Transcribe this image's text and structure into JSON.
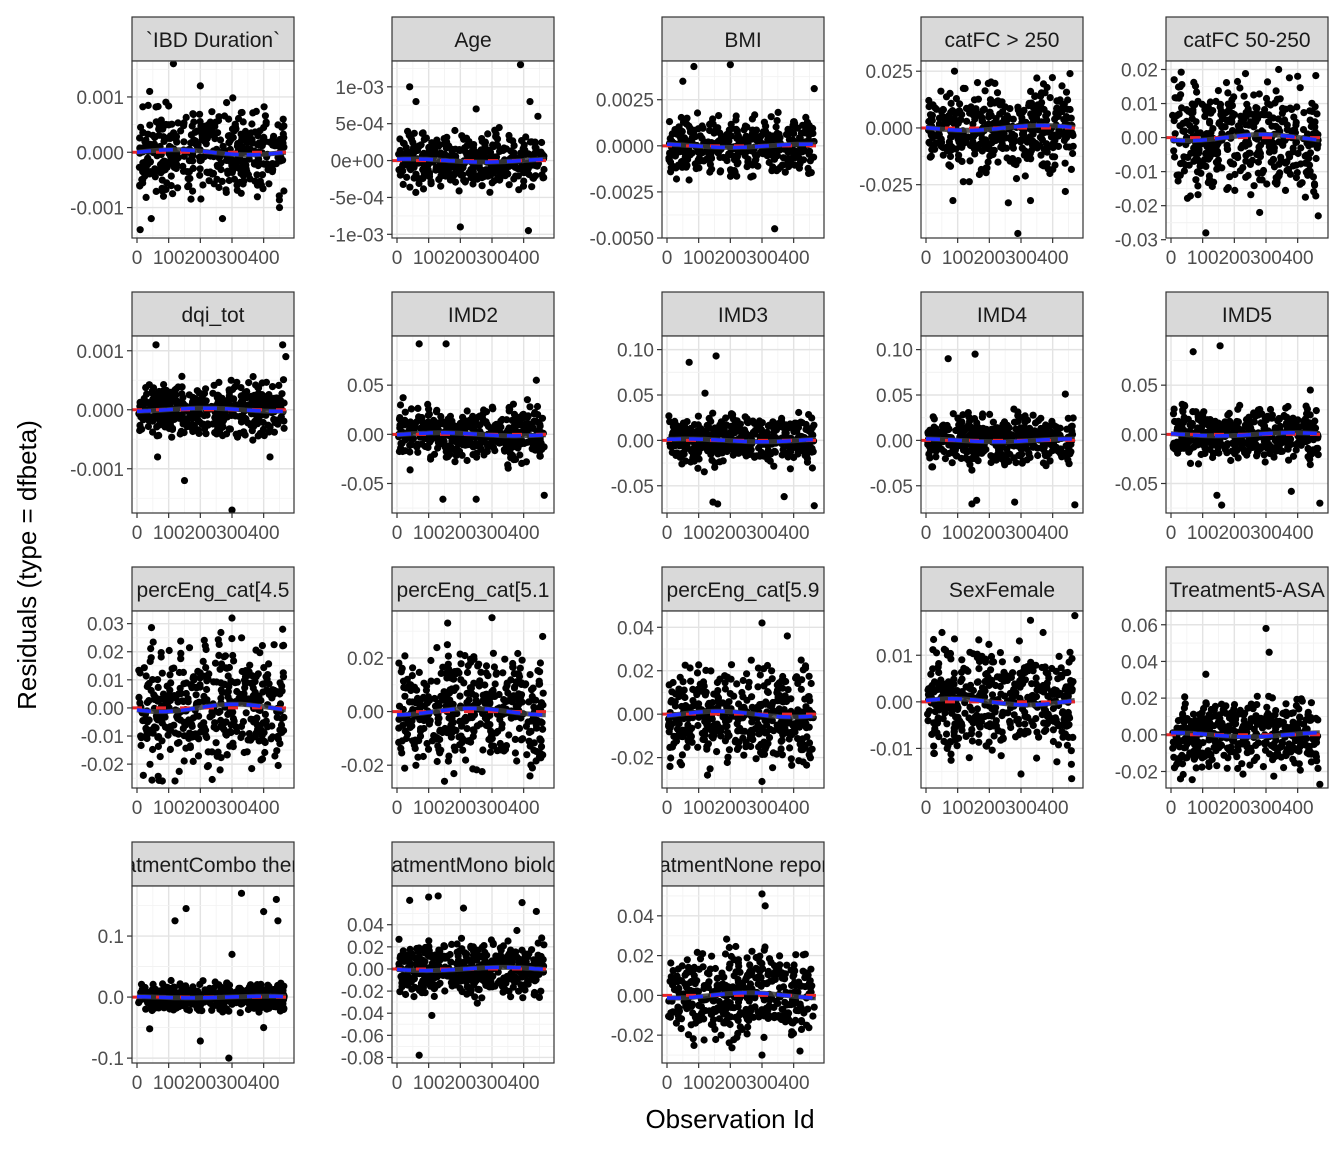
{
  "figure": {
    "xlabel": "Observation Id",
    "ylabel": "Residuals (type = dfbeta)",
    "colors": {
      "points": "#000000",
      "loess_line": "#3a3a3a",
      "zero_line": "#e8262a",
      "dashed_fit": "#1f2bff",
      "strip_fill": "#d9d9d9",
      "grid_major": "#e3e3e3",
      "grid_minor": "#f2f2f2"
    }
  },
  "chart_data": [
    {
      "type": "scatter",
      "title": "`IBD Duration`",
      "xlim": [
        0,
        480
      ],
      "xticks": [
        0,
        100,
        200,
        300,
        400
      ],
      "xtick_labels": [
        "0",
        "100",
        "200",
        "300",
        "400"
      ],
      "ylim": [
        -0.00155,
        0.00165
      ],
      "yticks": [
        -0.001,
        0,
        0.001
      ],
      "ytick_labels": [
        "-0.001",
        "0.000",
        "0.001"
      ],
      "spread": 0.00038,
      "outliers": [
        [
          115,
          0.0016
        ],
        [
          40,
          0.0011
        ],
        [
          10,
          -0.0014
        ],
        [
          45,
          -0.0012
        ],
        [
          270,
          -0.0012
        ],
        [
          450,
          -0.001
        ],
        [
          200,
          0.0012
        ]
      ],
      "grid": true
    },
    {
      "type": "scatter",
      "title": "Age",
      "xlim": [
        0,
        480
      ],
      "xticks": [
        0,
        100,
        200,
        300,
        400
      ],
      "xtick_labels": [
        "0",
        "100",
        "200",
        "300",
        "400"
      ],
      "ylim": [
        -0.00105,
        0.00135
      ],
      "yticks": [
        -0.001,
        -0.0005,
        0,
        0.0005,
        0.001
      ],
      "ytick_labels": [
        "-1e-03",
        "-5e-04",
        "0e+00",
        "5e-04",
        "1e-03"
      ],
      "spread": 0.00018,
      "outliers": [
        [
          390,
          0.0013
        ],
        [
          40,
          0.001
        ],
        [
          60,
          0.0008
        ],
        [
          250,
          0.0007
        ],
        [
          420,
          0.0008
        ],
        [
          445,
          0.0006
        ],
        [
          200,
          -0.0009
        ],
        [
          415,
          -0.00095
        ]
      ],
      "grid": true
    },
    {
      "type": "scatter",
      "title": "BMI",
      "xlim": [
        0,
        480
      ],
      "xticks": [
        0,
        100,
        200,
        300,
        400
      ],
      "xtick_labels": [
        "0",
        "100",
        "200",
        "300",
        "400"
      ],
      "ylim": [
        -0.005,
        0.0046
      ],
      "yticks": [
        -0.005,
        -0.0025,
        0,
        0.0025
      ],
      "ytick_labels": [
        "-0.0050",
        "-0.0025",
        "0.0000",
        "0.0025"
      ],
      "spread": 0.00075,
      "outliers": [
        [
          85,
          0.0043
        ],
        [
          200,
          0.0044
        ],
        [
          465,
          0.0031
        ],
        [
          340,
          -0.0045
        ],
        [
          50,
          0.0035
        ]
      ],
      "grid": true
    },
    {
      "type": "scatter",
      "title": "catFC > 250",
      "xlim": [
        0,
        480
      ],
      "xticks": [
        0,
        100,
        200,
        300,
        400
      ],
      "xtick_labels": [
        "0",
        "100",
        "200",
        "300",
        "400"
      ],
      "ylim": [
        -0.0485,
        0.0295
      ],
      "yticks": [
        -0.025,
        0,
        0.025
      ],
      "ytick_labels": [
        "-0.025",
        "0.000",
        "0.025"
      ],
      "spread": 0.009,
      "outliers": [
        [
          290,
          -0.0465
        ],
        [
          85,
          -0.032
        ],
        [
          260,
          -0.033
        ],
        [
          330,
          -0.032
        ],
        [
          440,
          -0.028
        ],
        [
          350,
          0.022
        ],
        [
          90,
          0.025
        ]
      ],
      "grid": true
    },
    {
      "type": "scatter",
      "title": "catFC 50-250",
      "xlim": [
        0,
        480
      ],
      "xticks": [
        0,
        100,
        200,
        300,
        400
      ],
      "xtick_labels": [
        "0",
        "100",
        "200",
        "300",
        "400"
      ],
      "ylim": [
        -0.0295,
        0.0225
      ],
      "yticks": [
        -0.03,
        -0.02,
        -0.01,
        0,
        0.01,
        0.02
      ],
      "ytick_labels": [
        "-0.03",
        "-0.02",
        "-0.01",
        "0.00",
        "0.01",
        "0.02"
      ],
      "spread": 0.0075,
      "outliers": [
        [
          110,
          -0.028
        ],
        [
          280,
          -0.022
        ],
        [
          465,
          -0.023
        ],
        [
          340,
          0.02
        ],
        [
          10,
          0.017
        ],
        [
          400,
          0.018
        ]
      ],
      "grid": true
    },
    {
      "type": "scatter",
      "title": "dqi_tot",
      "xlim": [
        0,
        480
      ],
      "xticks": [
        0,
        100,
        200,
        300,
        400
      ],
      "xtick_labels": [
        "0",
        "100",
        "200",
        "300",
        "400"
      ],
      "ylim": [
        -0.00175,
        0.00125
      ],
      "yticks": [
        -0.001,
        0,
        0.001
      ],
      "ytick_labels": [
        "-0.001",
        "0.000",
        "0.001"
      ],
      "spread": 0.00022,
      "outliers": [
        [
          300,
          -0.0017
        ],
        [
          150,
          -0.0012
        ],
        [
          60,
          0.0011
        ],
        [
          460,
          0.0011
        ],
        [
          65,
          -0.0008
        ],
        [
          420,
          -0.0008
        ],
        [
          470,
          0.0009
        ]
      ],
      "grid": true
    },
    {
      "type": "scatter",
      "title": "IMD2",
      "xlim": [
        0,
        480
      ],
      "xticks": [
        0,
        100,
        200,
        300,
        400
      ],
      "xtick_labels": [
        "0",
        "100",
        "200",
        "300",
        "400"
      ],
      "ylim": [
        -0.08,
        0.1
      ],
      "yticks": [
        -0.05,
        0,
        0.05
      ],
      "ytick_labels": [
        "-0.05",
        "0.00",
        "0.05"
      ],
      "spread": 0.013,
      "outliers": [
        [
          70,
          0.092
        ],
        [
          155,
          0.092
        ],
        [
          440,
          0.055
        ],
        [
          145,
          -0.066
        ],
        [
          465,
          -0.062
        ],
        [
          250,
          -0.066
        ],
        [
          420,
          0.028
        ]
      ],
      "grid": true
    },
    {
      "type": "scatter",
      "title": "IMD3",
      "xlim": [
        0,
        480
      ],
      "xticks": [
        0,
        100,
        200,
        300,
        400
      ],
      "xtick_labels": [
        "0",
        "100",
        "200",
        "300",
        "400"
      ],
      "ylim": [
        -0.08,
        0.115
      ],
      "yticks": [
        -0.05,
        0,
        0.05,
        0.1
      ],
      "ytick_labels": [
        "-0.05",
        "0.00",
        "0.05",
        "0.10"
      ],
      "spread": 0.013,
      "outliers": [
        [
          70,
          0.086
        ],
        [
          155,
          0.093
        ],
        [
          465,
          -0.072
        ],
        [
          160,
          -0.07
        ],
        [
          145,
          -0.068
        ],
        [
          370,
          -0.062
        ],
        [
          120,
          0.052
        ]
      ],
      "grid": true
    },
    {
      "type": "scatter",
      "title": "IMD4",
      "xlim": [
        0,
        480
      ],
      "xticks": [
        0,
        100,
        200,
        300,
        400
      ],
      "xtick_labels": [
        "0",
        "100",
        "200",
        "300",
        "400"
      ],
      "ylim": [
        -0.08,
        0.115
      ],
      "yticks": [
        -0.05,
        0,
        0.05,
        0.1
      ],
      "ytick_labels": [
        "-0.05",
        "0.00",
        "0.05",
        "0.10"
      ],
      "spread": 0.013,
      "outliers": [
        [
          70,
          0.09
        ],
        [
          155,
          0.095
        ],
        [
          470,
          -0.071
        ],
        [
          160,
          -0.066
        ],
        [
          145,
          -0.07
        ],
        [
          280,
          -0.068
        ],
        [
          440,
          0.051
        ]
      ],
      "grid": true
    },
    {
      "type": "scatter",
      "title": "IMD5",
      "xlim": [
        0,
        480
      ],
      "xticks": [
        0,
        100,
        200,
        300,
        400
      ],
      "xtick_labels": [
        "0",
        "100",
        "200",
        "300",
        "400"
      ],
      "ylim": [
        -0.08,
        0.1
      ],
      "yticks": [
        -0.05,
        0,
        0.05
      ],
      "ytick_labels": [
        "-0.05",
        "0.00",
        "0.05"
      ],
      "spread": 0.013,
      "outliers": [
        [
          70,
          0.084
        ],
        [
          155,
          0.09
        ],
        [
          470,
          -0.07
        ],
        [
          160,
          -0.072
        ],
        [
          145,
          -0.062
        ],
        [
          380,
          -0.058
        ],
        [
          440,
          0.045
        ]
      ],
      "grid": true
    },
    {
      "type": "scatter",
      "title": "percEng_cat[4.5",
      "xlim": [
        0,
        480
      ],
      "xticks": [
        0,
        100,
        200,
        300,
        400
      ],
      "xtick_labels": [
        "0",
        "100",
        "200",
        "300",
        "400"
      ],
      "ylim": [
        -0.0285,
        0.0345
      ],
      "yticks": [
        -0.02,
        -0.01,
        0,
        0.01,
        0.02,
        0.03
      ],
      "ytick_labels": [
        "-0.02",
        "-0.01",
        "0.00",
        "0.01",
        "0.02",
        "0.03"
      ],
      "spread": 0.011,
      "outliers": [
        [
          300,
          0.032
        ],
        [
          460,
          0.028
        ],
        [
          80,
          -0.026
        ],
        [
          120,
          -0.026
        ],
        [
          20,
          -0.024
        ]
      ],
      "grid": true
    },
    {
      "type": "scatter",
      "title": "percEng_cat[5.1",
      "xlim": [
        0,
        480
      ],
      "xticks": [
        0,
        100,
        200,
        300,
        400
      ],
      "xtick_labels": [
        "0",
        "100",
        "200",
        "300",
        "400"
      ],
      "ylim": [
        -0.0285,
        0.0375
      ],
      "yticks": [
        -0.02,
        0,
        0.02
      ],
      "ytick_labels": [
        "-0.02",
        "0.00",
        "0.02"
      ],
      "spread": 0.01,
      "outliers": [
        [
          300,
          0.035
        ],
        [
          160,
          0.033
        ],
        [
          460,
          0.028
        ],
        [
          150,
          -0.026
        ],
        [
          420,
          -0.024
        ]
      ],
      "grid": true
    },
    {
      "type": "scatter",
      "title": "percEng_cat[5.9",
      "xlim": [
        0,
        480
      ],
      "xticks": [
        0,
        100,
        200,
        300,
        400
      ],
      "xtick_labels": [
        "0",
        "100",
        "200",
        "300",
        "400"
      ],
      "ylim": [
        -0.034,
        0.0475
      ],
      "yticks": [
        -0.02,
        0,
        0.02,
        0.04
      ],
      "ytick_labels": [
        "-0.02",
        "0.00",
        "0.02",
        "0.04"
      ],
      "spread": 0.011,
      "outliers": [
        [
          300,
          0.042
        ],
        [
          380,
          0.036
        ],
        [
          300,
          -0.031
        ],
        [
          430,
          -0.022
        ]
      ],
      "grid": true
    },
    {
      "type": "scatter",
      "title": "SexFemale",
      "xlim": [
        0,
        480
      ],
      "xticks": [
        0,
        100,
        200,
        300,
        400
      ],
      "xtick_labels": [
        "0",
        "100",
        "200",
        "300",
        "400"
      ],
      "ylim": [
        -0.0185,
        0.0195
      ],
      "yticks": [
        -0.01,
        0,
        0.01
      ],
      "ytick_labels": [
        "-0.01",
        "0.00",
        "0.01"
      ],
      "spread": 0.0055,
      "outliers": [
        [
          470,
          0.0185
        ],
        [
          330,
          0.0175
        ],
        [
          90,
          0.0135
        ],
        [
          460,
          -0.0165
        ],
        [
          300,
          -0.0155
        ]
      ],
      "grid": true
    },
    {
      "type": "scatter",
      "title": "Treatment5-ASA",
      "xlim": [
        0,
        480
      ],
      "xticks": [
        0,
        100,
        200,
        300,
        400
      ],
      "xtick_labels": [
        "0",
        "100",
        "200",
        "300",
        "400"
      ],
      "ylim": [
        -0.029,
        0.0675
      ],
      "yticks": [
        -0.02,
        0,
        0.02,
        0.04,
        0.06
      ],
      "ytick_labels": [
        "-0.02",
        "0.00",
        "0.02",
        "0.04",
        "0.06"
      ],
      "spread": 0.009,
      "outliers": [
        [
          300,
          0.058
        ],
        [
          310,
          0.045
        ],
        [
          110,
          0.033
        ],
        [
          470,
          -0.027
        ],
        [
          30,
          -0.024
        ]
      ],
      "grid": true
    },
    {
      "type": "scatter",
      "title": "TreatmentCombo therapy",
      "xlim": [
        0,
        480
      ],
      "xticks": [
        0,
        100,
        200,
        300,
        400
      ],
      "xtick_labels": [
        "0",
        "100",
        "200",
        "300",
        "400"
      ],
      "ylim": [
        -0.108,
        0.182
      ],
      "yticks": [
        -0.1,
        0,
        0.1
      ],
      "ytick_labels": [
        "-0.1",
        "0.0",
        "0.1"
      ],
      "spread": 0.011,
      "outliers": [
        [
          120,
          0.125
        ],
        [
          155,
          0.145
        ],
        [
          330,
          0.17
        ],
        [
          440,
          0.16
        ],
        [
          445,
          0.125
        ],
        [
          400,
          0.14
        ],
        [
          300,
          0.07
        ],
        [
          290,
          -0.1
        ],
        [
          200,
          -0.072
        ],
        [
          40,
          -0.052
        ],
        [
          400,
          -0.05
        ]
      ],
      "grid": true
    },
    {
      "type": "scatter",
      "title": "TreatmentMono biologic",
      "xlim": [
        0,
        480
      ],
      "xticks": [
        0,
        100,
        200,
        300,
        400
      ],
      "xtick_labels": [
        "0",
        "100",
        "200",
        "300",
        "400"
      ],
      "ylim": [
        -0.085,
        0.075
      ],
      "yticks": [
        -0.08,
        -0.06,
        -0.04,
        -0.02,
        0,
        0.02,
        0.04
      ],
      "ytick_labels": [
        "-0.08",
        "-0.06",
        "-0.04",
        "-0.02",
        "0.00",
        "0.02",
        "0.04"
      ],
      "spread": 0.012,
      "outliers": [
        [
          70,
          -0.078
        ],
        [
          110,
          -0.042
        ],
        [
          100,
          0.065
        ],
        [
          130,
          0.066
        ],
        [
          40,
          0.062
        ],
        [
          395,
          0.06
        ],
        [
          440,
          0.052
        ],
        [
          210,
          0.055
        ]
      ],
      "grid": true
    },
    {
      "type": "scatter",
      "title": "TreatmentNone reported",
      "xlim": [
        0,
        480
      ],
      "xticks": [
        0,
        100,
        200,
        300,
        400
      ],
      "xtick_labels": [
        "0",
        "100",
        "200",
        "300",
        "400"
      ],
      "ylim": [
        -0.034,
        0.055
      ],
      "yticks": [
        -0.02,
        0,
        0.02,
        0.04
      ],
      "ytick_labels": [
        "-0.02",
        "0.00",
        "0.02",
        "0.04"
      ],
      "spread": 0.011,
      "outliers": [
        [
          300,
          0.051
        ],
        [
          310,
          0.045
        ],
        [
          300,
          -0.03
        ],
        [
          420,
          -0.028
        ]
      ],
      "grid": true
    }
  ]
}
